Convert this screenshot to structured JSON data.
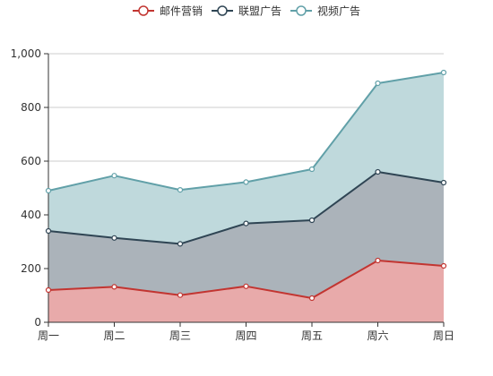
{
  "chart_data": {
    "type": "area",
    "stacked": true,
    "categories": [
      "周一",
      "周二",
      "周三",
      "周四",
      "周五",
      "周六",
      "周日"
    ],
    "series": [
      {
        "name": "邮件营销",
        "values": [
          120,
          132,
          101,
          134,
          90,
          230,
          210
        ],
        "color": "#c23531",
        "fill": "#e8aaaa"
      },
      {
        "name": "联盟广告",
        "values": [
          220,
          182,
          191,
          234,
          290,
          330,
          310
        ],
        "color": "#2f4554",
        "fill": "#abb3ba"
      },
      {
        "name": "视频广告",
        "values": [
          150,
          232,
          201,
          154,
          190,
          330,
          410
        ],
        "color": "#61a0a8",
        "fill": "#bfd9dc"
      }
    ],
    "ylim": [
      0,
      1000
    ],
    "yticks": [
      0,
      200,
      400,
      600,
      800,
      1000
    ],
    "ytick_labels": [
      "0",
      "200",
      "400",
      "600",
      "800",
      "1,000"
    ],
    "grid": true,
    "legend": "top-center",
    "title": "",
    "xlabel": "",
    "ylabel": ""
  }
}
